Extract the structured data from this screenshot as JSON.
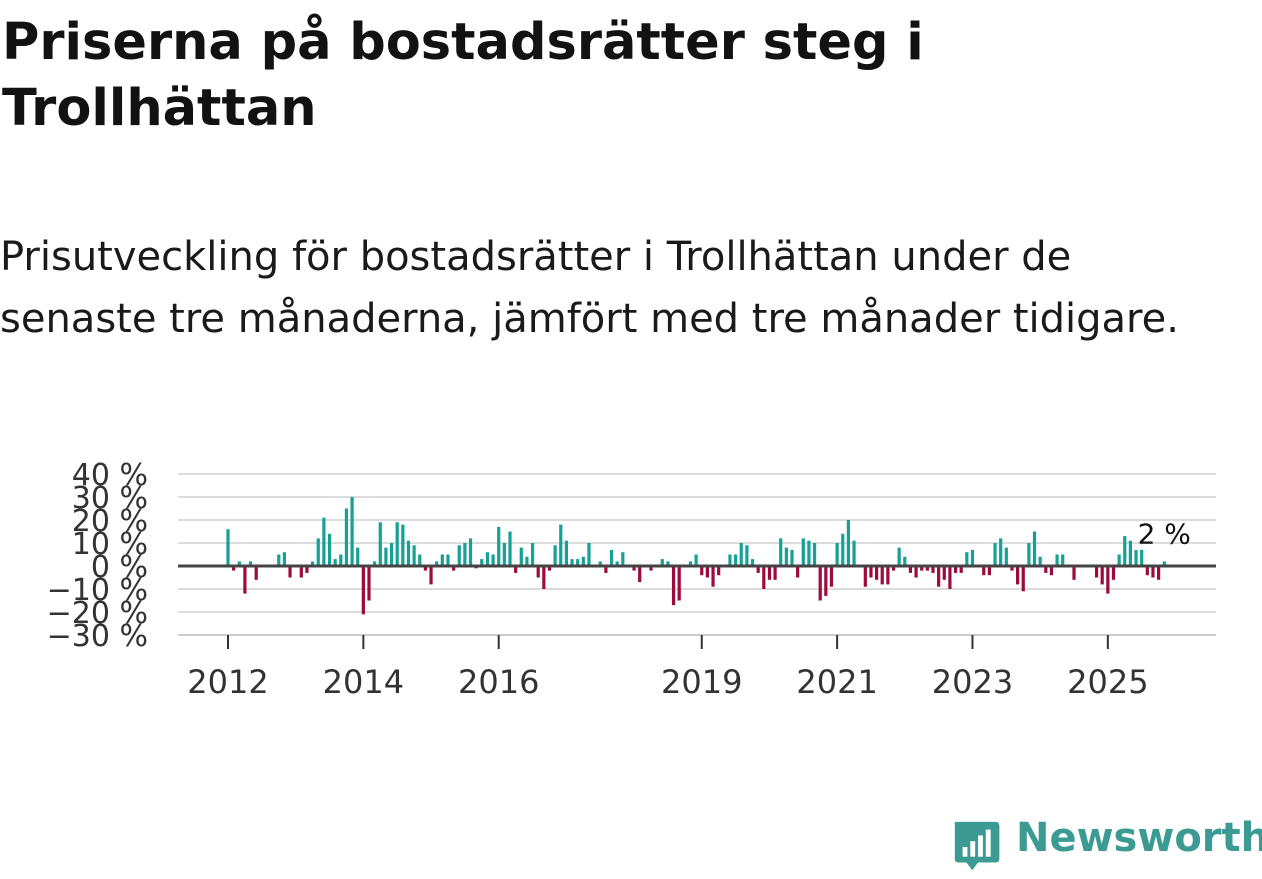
{
  "title": "Priserna på bostadsrätter steg i Trollhättan",
  "subtitle": "Prisutveckling för bostadsrätter i Trollhättan under de senaste tre månaderna, jämfört med tre månader tidigare.",
  "brand": {
    "name": "Newsworthy",
    "color": "#3b9b93"
  },
  "colors": {
    "positive": "#16a096",
    "negative": "#9e0a3c",
    "grid": "#dcdcdc",
    "zero": "#444444"
  },
  "chart_data": {
    "type": "bar",
    "x_start": "2011-12",
    "y_unit": "%",
    "ylim": [
      -30,
      40
    ],
    "yticks": [
      {
        "v": 40,
        "label": "40 %"
      },
      {
        "v": 30,
        "label": "30 %"
      },
      {
        "v": 20,
        "label": "20 %"
      },
      {
        "v": 10,
        "label": "10 %"
      },
      {
        "v": 0,
        "label": "0 %"
      },
      {
        "v": -10,
        "label": "−10 %"
      },
      {
        "v": -20,
        "label": "−20 %"
      },
      {
        "v": -30,
        "label": "−30 %"
      }
    ],
    "xticks": [
      {
        "index": 0,
        "label": "2012"
      },
      {
        "index": 24,
        "label": "2014"
      },
      {
        "index": 48,
        "label": "2016"
      },
      {
        "index": 84,
        "label": "2019"
      },
      {
        "index": 108,
        "label": "2021"
      },
      {
        "index": 132,
        "label": "2023"
      },
      {
        "index": 156,
        "label": "2025"
      }
    ],
    "annotation": {
      "label": "2 %",
      "value": 2
    },
    "values": [
      16,
      -2,
      2,
      -12,
      2,
      -6,
      0,
      0,
      0,
      5,
      6,
      -5,
      0,
      -5,
      -3,
      2,
      12,
      21,
      14,
      3,
      5,
      25,
      30,
      8,
      -21,
      -15,
      2,
      19,
      8,
      10,
      19,
      18,
      11,
      9,
      5,
      -2,
      -8,
      2,
      5,
      5,
      -2,
      9,
      10,
      12,
      -1,
      3,
      6,
      5,
      17,
      10,
      15,
      -3,
      8,
      4,
      10,
      -5,
      -10,
      -2,
      9,
      18,
      11,
      3,
      3,
      4,
      10,
      0,
      2,
      -3,
      7,
      2,
      6,
      0,
      -2,
      -7,
      0,
      -2,
      0,
      3,
      2,
      -17,
      -15,
      0,
      2,
      5,
      -4,
      -5,
      -9,
      -4,
      0,
      5,
      5,
      10,
      9,
      3,
      -3,
      -10,
      -6,
      -6,
      12,
      8,
      7,
      -5,
      12,
      11,
      10,
      -15,
      -13,
      -9,
      10,
      14,
      20,
      11,
      0,
      -9,
      -5,
      -6,
      -8,
      -8,
      -2,
      8,
      4,
      -3,
      -5,
      -2,
      -2,
      -3,
      -9,
      -6,
      -10,
      -3,
      -3,
      6,
      7,
      0,
      -4,
      -4,
      10,
      12,
      8,
      -2,
      -8,
      -11,
      10,
      15,
      4,
      -3,
      -4,
      5,
      5,
      0,
      -6,
      0,
      0,
      0,
      -5,
      -8,
      -12,
      -6,
      5,
      13,
      11,
      7,
      7,
      -4,
      -5,
      -6,
      2
    ]
  }
}
